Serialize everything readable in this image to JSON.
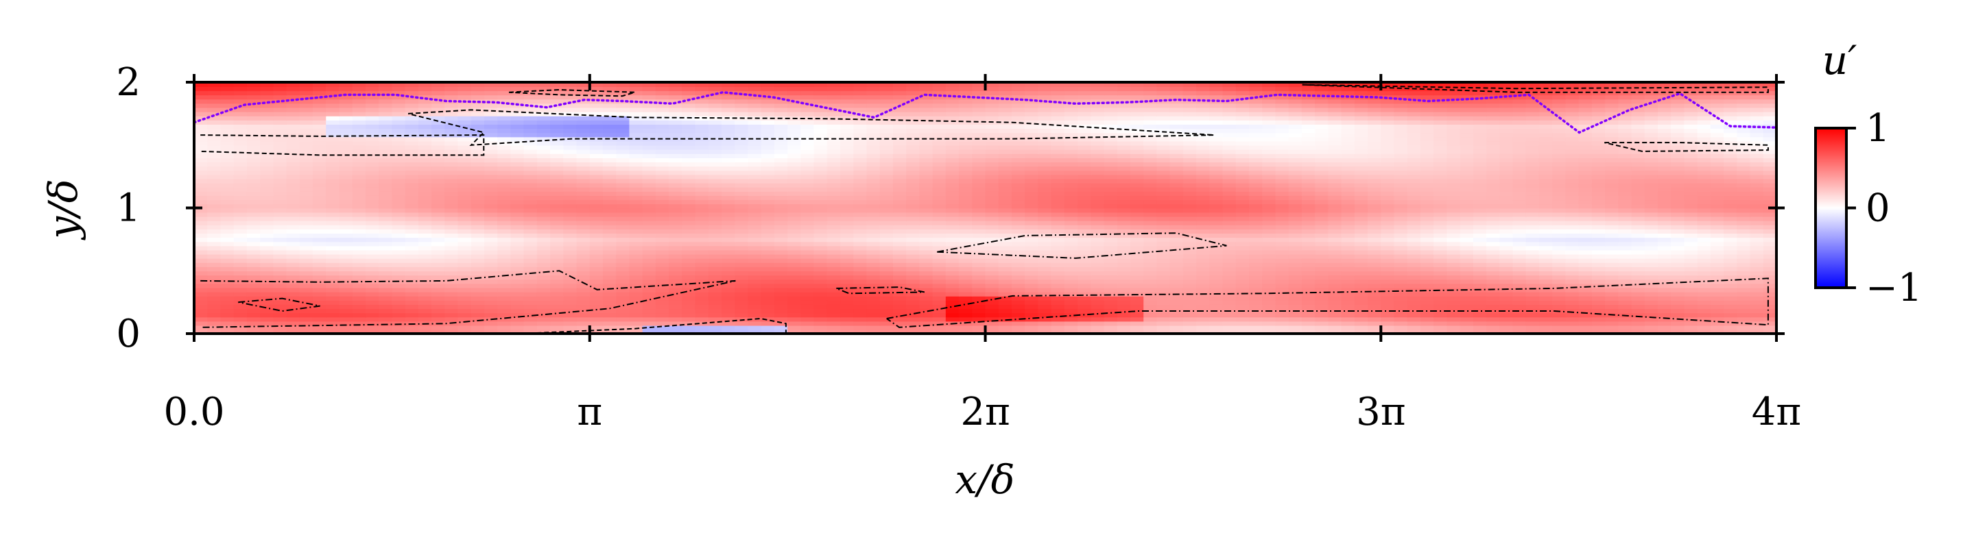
{
  "chart_data": {
    "type": "heatmap",
    "colorbar_label": "u′",
    "colorbar_ticks": [
      "1",
      "0",
      "−1"
    ],
    "colorbar_range": [
      -1,
      1
    ],
    "colormap": [
      "#0000ff",
      "#ffffff",
      "#ff0000"
    ],
    "xlabel": "x/δ",
    "ylabel": "y/δ",
    "xlim": [
      0,
      12.566
    ],
    "ylim": [
      0,
      2
    ],
    "x_tick_values": [
      0,
      3.1416,
      6.2832,
      9.4248,
      12.566
    ],
    "x_tick_labels": [
      "0.0",
      "π",
      "2π",
      "3π",
      "4π"
    ],
    "y_tick_values": [
      0,
      1,
      2
    ],
    "y_tick_labels": [
      "0",
      "1",
      "2"
    ],
    "field_description": "streamwise velocity fluctuation; predominantly positive (red) bands near the walls and centerline, weak negative (blue) patches near y≈1.65 and y≈0",
    "bands": [
      {
        "y": 0.05,
        "value": 0.35
      },
      {
        "y": 0.15,
        "value": 0.6
      },
      {
        "y": 0.3,
        "value": 0.55
      },
      {
        "y": 0.55,
        "value": 0.3
      },
      {
        "y": 0.75,
        "value": 0.1
      },
      {
        "y": 1.0,
        "value": 0.45
      },
      {
        "y": 1.2,
        "value": 0.35
      },
      {
        "y": 1.45,
        "value": 0.1
      },
      {
        "y": 1.65,
        "value": 0.0
      },
      {
        "y": 1.85,
        "value": 0.4
      },
      {
        "y": 1.97,
        "value": 0.7
      }
    ],
    "purple_dotted_line": {
      "color": "#7f00ff",
      "x": [
        0,
        0.4,
        0.8,
        1.2,
        1.6,
        2.0,
        2.4,
        2.8,
        3.1,
        3.4,
        3.8,
        4.2,
        4.6,
        5.0,
        5.4,
        5.8,
        6.2,
        6.6,
        7.0,
        7.4,
        7.8,
        8.2,
        8.6,
        9.0,
        9.4,
        9.8,
        10.2,
        10.6,
        11.0,
        11.4,
        11.8,
        12.2,
        12.566
      ],
      "y": [
        1.68,
        1.82,
        1.86,
        1.9,
        1.9,
        1.85,
        1.84,
        1.8,
        1.86,
        1.85,
        1.83,
        1.92,
        1.88,
        1.8,
        1.72,
        1.9,
        1.88,
        1.86,
        1.83,
        1.84,
        1.86,
        1.85,
        1.9,
        1.89,
        1.88,
        1.85,
        1.87,
        1.9,
        1.6,
        1.78,
        1.91,
        1.65,
        1.64
      ]
    },
    "dashed_contours": [
      {
        "x": [
          1.7,
          2.2,
          3.5,
          5.0,
          6.5,
          8.1,
          6.5,
          3.0,
          2.2,
          2.3,
          1.7
        ],
        "y": [
          1.75,
          1.78,
          1.72,
          1.71,
          1.68,
          1.58,
          1.55,
          1.55,
          1.5,
          1.6,
          1.75
        ]
      },
      {
        "x": [
          2.5,
          2.9,
          3.5,
          3.4,
          2.9,
          2.5
        ],
        "y": [
          1.92,
          1.94,
          1.92,
          1.89,
          1.9,
          1.92
        ]
      },
      {
        "x": [
          0.05,
          1.0,
          2.3,
          2.3,
          1.0,
          0.05
        ],
        "y": [
          1.58,
          1.57,
          1.58,
          1.42,
          1.42,
          1.45
        ]
      },
      {
        "x": [
          8.8,
          10.5,
          12.5,
          12.5,
          10.5,
          8.8
        ],
        "y": [
          1.98,
          1.95,
          1.96,
          1.92,
          1.92,
          1.98
        ]
      },
      {
        "x": [
          11.2,
          11.8,
          12.5,
          12.5,
          11.5,
          11.2
        ],
        "y": [
          1.52,
          1.52,
          1.5,
          1.46,
          1.45,
          1.52
        ]
      },
      {
        "x": [
          2.6,
          3.5,
          4.5,
          4.7,
          4.7
        ],
        "y": [
          0.0,
          0.04,
          0.12,
          0.08,
          0.0
        ]
      }
    ],
    "dashdot_contours": [
      {
        "x": [
          0.05,
          1.0,
          2.0,
          2.9,
          3.2,
          4.3,
          3.3,
          2.0,
          0.05
        ],
        "y": [
          0.42,
          0.41,
          0.42,
          0.5,
          0.35,
          0.42,
          0.2,
          0.08,
          0.05
        ]
      },
      {
        "x": [
          0.35,
          0.7,
          1.0,
          0.7,
          0.35
        ],
        "y": [
          0.25,
          0.28,
          0.22,
          0.18,
          0.25
        ]
      },
      {
        "x": [
          5.1,
          5.6,
          5.8,
          5.2,
          5.1
        ],
        "y": [
          0.36,
          0.37,
          0.33,
          0.32,
          0.36
        ]
      },
      {
        "x": [
          5.5,
          6.5,
          8.5,
          10.8,
          12.5,
          12.5,
          10.8,
          7.5,
          5.6,
          5.5
        ],
        "y": [
          0.12,
          0.3,
          0.32,
          0.36,
          0.44,
          0.07,
          0.18,
          0.18,
          0.05,
          0.12
        ]
      },
      {
        "x": [
          5.9,
          6.6,
          7.8,
          8.2,
          7.0,
          5.9
        ],
        "y": [
          0.65,
          0.78,
          0.8,
          0.7,
          0.6,
          0.65
        ]
      }
    ]
  }
}
